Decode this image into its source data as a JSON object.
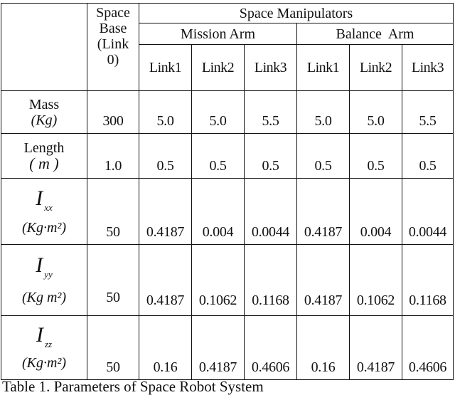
{
  "table": {
    "header": {
      "space_base": [
        "Space",
        "Base",
        "(Link",
        "0)"
      ],
      "space_manipulators": "Space Manipulators",
      "mission_arm": "Mission Arm",
      "balance_arm": "Balance  Arm",
      "links": [
        "Link1",
        "Link2",
        "Link3",
        "Link1",
        "Link2",
        "Link3"
      ]
    },
    "rows": [
      {
        "label_top": "Mass",
        "label_unit": "(Kg)",
        "base": "300",
        "values": [
          "5.0",
          "5.0",
          "5.5",
          "5.0",
          "5.0",
          "5.5"
        ]
      },
      {
        "label_top": "Length",
        "label_unit": "( m )",
        "base": "1.0",
        "values": [
          "0.5",
          "0.5",
          "0.5",
          "0.5",
          "0.5",
          "0.5"
        ]
      },
      {
        "label_sym": "I",
        "label_sub": "xx",
        "label_unit": "(Kg·m²)",
        "base": "50",
        "values": [
          "0.4187",
          "0.004",
          "0.0044",
          "0.4187",
          "0.004",
          "0.0044"
        ]
      },
      {
        "label_sym": "I",
        "label_sub": "yy",
        "label_unit": "(Kg m²)",
        "base": "50",
        "values": [
          "0.4187",
          "0.1062",
          "0.1168",
          "0.4187",
          "0.1062",
          "0.1168"
        ]
      },
      {
        "label_sym": "I",
        "label_sub": "zz",
        "label_unit": "(Kg·m²)",
        "base": "50",
        "values": [
          "0.16",
          "0.4187",
          "0.4606",
          "0.16",
          "0.4187",
          "0.4606"
        ]
      }
    ]
  },
  "caption": "Table 1. Parameters of Space Robot System"
}
